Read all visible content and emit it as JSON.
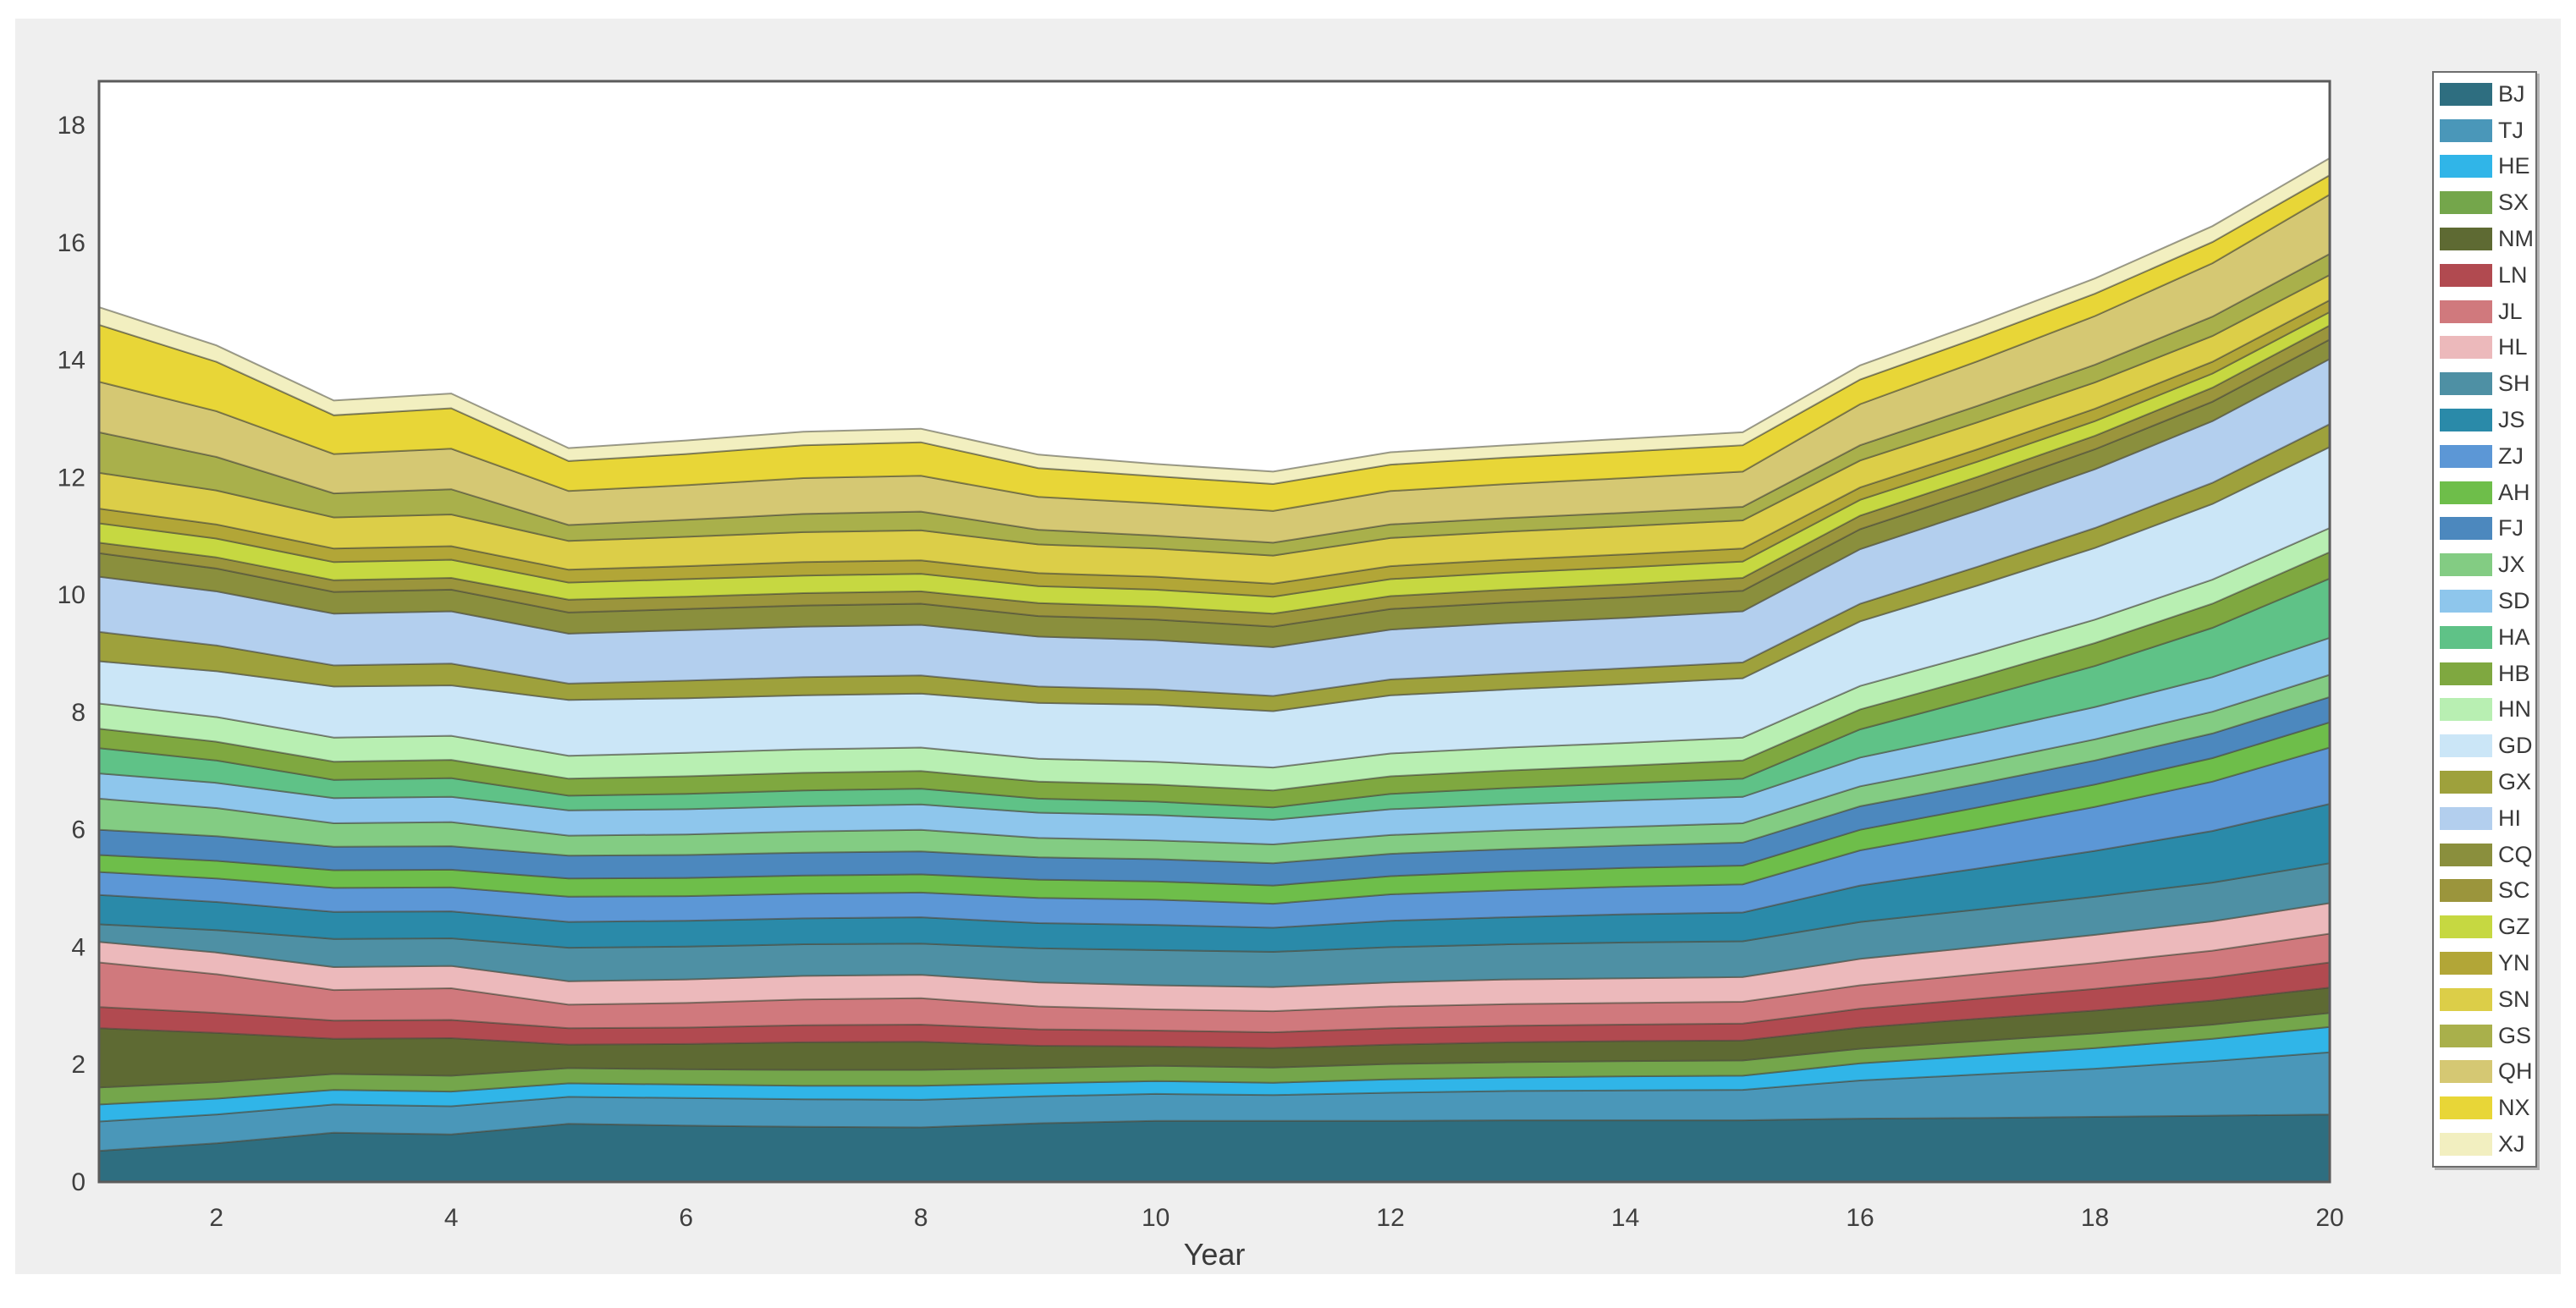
{
  "figure": {
    "background_color": "#efefef",
    "plot_background_color": "#ffffff",
    "axis_box_color": "#5b5b5b",
    "band_edge_color": "rgba(75,75,60,0.55)",
    "tick_label_color": "#3f3f3f"
  },
  "axes": {
    "xlabel": "Year",
    "x_tick_labels": [
      2,
      4,
      6,
      8,
      10,
      12,
      14,
      16,
      18,
      20
    ],
    "y_tick_labels": [
      0,
      2,
      4,
      6,
      8,
      10,
      12,
      14,
      16,
      18
    ],
    "x_range": [
      1,
      20
    ],
    "y_range": [
      0,
      18.75
    ],
    "grid": "off",
    "legend_position": "right-outside"
  },
  "chart_data": {
    "type": "area",
    "stacked": true,
    "title": "",
    "xlabel": "Year",
    "ylabel": "",
    "xlim": [
      1,
      20
    ],
    "ylim": [
      0,
      18.75
    ],
    "x": [
      1,
      2,
      3,
      4,
      5,
      6,
      7,
      8,
      9,
      10,
      11,
      12,
      13,
      14,
      15,
      16,
      17,
      18,
      19,
      20
    ],
    "series": [
      {
        "name": "BJ",
        "color": "#2E6E80",
        "values": [
          0.53,
          0.66,
          0.84,
          0.81,
          0.99,
          0.96,
          0.94,
          0.93,
          1.0,
          1.04,
          1.04,
          1.04,
          1.05,
          1.05,
          1.05,
          1.08,
          1.09,
          1.11,
          1.13,
          1.15
        ]
      },
      {
        "name": "TJ",
        "color": "#4A97B9",
        "values": [
          0.5,
          0.49,
          0.48,
          0.48,
          0.46,
          0.47,
          0.47,
          0.47,
          0.46,
          0.46,
          0.44,
          0.48,
          0.5,
          0.51,
          0.52,
          0.65,
          0.74,
          0.82,
          0.93,
          1.06
        ]
      },
      {
        "name": "HE",
        "color": "#30B5E8",
        "values": [
          0.29,
          0.27,
          0.25,
          0.25,
          0.23,
          0.23,
          0.23,
          0.24,
          0.22,
          0.22,
          0.21,
          0.23,
          0.23,
          0.24,
          0.24,
          0.29,
          0.32,
          0.35,
          0.38,
          0.43
        ]
      },
      {
        "name": "SX",
        "color": "#74A64B",
        "values": [
          0.29,
          0.28,
          0.27,
          0.27,
          0.26,
          0.26,
          0.27,
          0.27,
          0.26,
          0.26,
          0.26,
          0.26,
          0.26,
          0.26,
          0.26,
          0.25,
          0.25,
          0.25,
          0.24,
          0.24
        ]
      },
      {
        "name": "NM",
        "color": "#5E6A33",
        "values": [
          1.01,
          0.84,
          0.6,
          0.64,
          0.4,
          0.43,
          0.47,
          0.48,
          0.38,
          0.33,
          0.33,
          0.33,
          0.34,
          0.34,
          0.34,
          0.36,
          0.38,
          0.39,
          0.41,
          0.43
        ]
      },
      {
        "name": "LN",
        "color": "#B14A50",
        "values": [
          0.36,
          0.34,
          0.31,
          0.31,
          0.28,
          0.28,
          0.29,
          0.29,
          0.28,
          0.27,
          0.27,
          0.28,
          0.28,
          0.28,
          0.29,
          0.32,
          0.34,
          0.37,
          0.39,
          0.43
        ]
      },
      {
        "name": "JL",
        "color": "#D0797D",
        "values": [
          0.76,
          0.66,
          0.52,
          0.54,
          0.4,
          0.42,
          0.44,
          0.45,
          0.39,
          0.36,
          0.36,
          0.37,
          0.37,
          0.37,
          0.37,
          0.4,
          0.42,
          0.44,
          0.46,
          0.49
        ]
      },
      {
        "name": "HL",
        "color": "#ECB9BB",
        "values": [
          0.35,
          0.37,
          0.39,
          0.38,
          0.4,
          0.4,
          0.4,
          0.4,
          0.41,
          0.41,
          0.41,
          0.41,
          0.42,
          0.42,
          0.42,
          0.45,
          0.46,
          0.48,
          0.5,
          0.52
        ]
      },
      {
        "name": "SH",
        "color": "#4E90A4",
        "values": [
          0.3,
          0.38,
          0.48,
          0.47,
          0.57,
          0.56,
          0.54,
          0.53,
          0.58,
          0.6,
          0.6,
          0.6,
          0.6,
          0.61,
          0.61,
          0.63,
          0.64,
          0.65,
          0.66,
          0.68
        ]
      },
      {
        "name": "JS",
        "color": "#2A8AA9",
        "values": [
          0.5,
          0.48,
          0.46,
          0.46,
          0.44,
          0.44,
          0.44,
          0.45,
          0.43,
          0.43,
          0.41,
          0.45,
          0.46,
          0.48,
          0.49,
          0.62,
          0.7,
          0.78,
          0.88,
          1.01
        ]
      },
      {
        "name": "ZJ",
        "color": "#5C97D6",
        "values": [
          0.39,
          0.4,
          0.41,
          0.41,
          0.43,
          0.42,
          0.42,
          0.42,
          0.43,
          0.43,
          0.41,
          0.45,
          0.46,
          0.47,
          0.48,
          0.6,
          0.67,
          0.75,
          0.84,
          0.96
        ]
      },
      {
        "name": "AH",
        "color": "#6EBE4A",
        "values": [
          0.29,
          0.3,
          0.3,
          0.3,
          0.31,
          0.31,
          0.31,
          0.31,
          0.31,
          0.31,
          0.31,
          0.31,
          0.32,
          0.32,
          0.32,
          0.35,
          0.37,
          0.38,
          0.4,
          0.43
        ]
      },
      {
        "name": "FJ",
        "color": "#4C88BE",
        "values": [
          0.43,
          0.42,
          0.4,
          0.4,
          0.39,
          0.39,
          0.39,
          0.39,
          0.38,
          0.38,
          0.38,
          0.38,
          0.38,
          0.38,
          0.39,
          0.4,
          0.4,
          0.41,
          0.42,
          0.43
        ]
      },
      {
        "name": "JX",
        "color": "#83CC83",
        "values": [
          0.53,
          0.48,
          0.4,
          0.41,
          0.34,
          0.35,
          0.36,
          0.37,
          0.33,
          0.32,
          0.32,
          0.32,
          0.32,
          0.32,
          0.33,
          0.34,
          0.35,
          0.36,
          0.37,
          0.38
        ]
      },
      {
        "name": "SD",
        "color": "#8EC6EC",
        "values": [
          0.43,
          0.43,
          0.43,
          0.43,
          0.43,
          0.43,
          0.43,
          0.43,
          0.43,
          0.43,
          0.42,
          0.44,
          0.44,
          0.45,
          0.45,
          0.49,
          0.52,
          0.55,
          0.59,
          0.63
        ]
      },
      {
        "name": "HA",
        "color": "#5FC287",
        "values": [
          0.43,
          0.38,
          0.31,
          0.32,
          0.25,
          0.26,
          0.27,
          0.27,
          0.24,
          0.23,
          0.21,
          0.26,
          0.28,
          0.29,
          0.31,
          0.48,
          0.59,
          0.7,
          0.84,
          1.01
        ]
      },
      {
        "name": "HB",
        "color": "#7FA840",
        "values": [
          0.33,
          0.32,
          0.31,
          0.31,
          0.29,
          0.3,
          0.3,
          0.3,
          0.29,
          0.29,
          0.29,
          0.3,
          0.3,
          0.3,
          0.31,
          0.34,
          0.36,
          0.39,
          0.41,
          0.45
        ]
      },
      {
        "name": "HN",
        "color": "#B8EFB2",
        "values": [
          0.43,
          0.42,
          0.41,
          0.41,
          0.39,
          0.4,
          0.4,
          0.4,
          0.39,
          0.39,
          0.39,
          0.39,
          0.39,
          0.39,
          0.39,
          0.4,
          0.4,
          0.4,
          0.41,
          0.41
        ]
      },
      {
        "name": "GD",
        "color": "#CBE6F7",
        "values": [
          0.72,
          0.78,
          0.87,
          0.86,
          0.95,
          0.93,
          0.92,
          0.92,
          0.95,
          0.97,
          0.96,
          0.99,
          0.99,
          1.0,
          1.01,
          1.1,
          1.16,
          1.22,
          1.29,
          1.38
        ]
      },
      {
        "name": "GX",
        "color": "#9EA13C",
        "values": [
          0.5,
          0.44,
          0.36,
          0.37,
          0.28,
          0.3,
          0.31,
          0.31,
          0.28,
          0.26,
          0.26,
          0.27,
          0.27,
          0.27,
          0.27,
          0.3,
          0.32,
          0.34,
          0.36,
          0.39
        ]
      },
      {
        "name": "HI",
        "color": "#B3CFEE",
        "values": [
          0.94,
          0.92,
          0.88,
          0.89,
          0.85,
          0.86,
          0.86,
          0.86,
          0.85,
          0.84,
          0.83,
          0.85,
          0.86,
          0.86,
          0.87,
          0.93,
          0.96,
          1.0,
          1.05,
          1.11
        ]
      },
      {
        "name": "CQ",
        "color": "#8A8F3D",
        "values": [
          0.4,
          0.39,
          0.37,
          0.37,
          0.36,
          0.36,
          0.36,
          0.36,
          0.35,
          0.35,
          0.35,
          0.35,
          0.35,
          0.35,
          0.35,
          0.34,
          0.34,
          0.34,
          0.33,
          0.33
        ]
      },
      {
        "name": "SC",
        "color": "#9B953C",
        "values": [
          0.18,
          0.19,
          0.2,
          0.2,
          0.22,
          0.21,
          0.21,
          0.21,
          0.22,
          0.22,
          0.22,
          0.22,
          0.22,
          0.22,
          0.22,
          0.23,
          0.23,
          0.23,
          0.24,
          0.24
        ]
      },
      {
        "name": "GZ",
        "color": "#C6D841",
        "values": [
          0.33,
          0.32,
          0.31,
          0.31,
          0.29,
          0.3,
          0.3,
          0.3,
          0.29,
          0.29,
          0.29,
          0.29,
          0.29,
          0.29,
          0.28,
          0.27,
          0.26,
          0.25,
          0.24,
          0.23
        ]
      },
      {
        "name": "YN",
        "color": "#B2A637",
        "values": [
          0.25,
          0.24,
          0.23,
          0.23,
          0.22,
          0.22,
          0.23,
          0.23,
          0.22,
          0.22,
          0.22,
          0.22,
          0.22,
          0.22,
          0.22,
          0.21,
          0.21,
          0.21,
          0.2,
          0.2
        ]
      },
      {
        "name": "SN",
        "color": "#DCCE48",
        "values": [
          0.61,
          0.58,
          0.53,
          0.54,
          0.49,
          0.5,
          0.51,
          0.51,
          0.49,
          0.48,
          0.48,
          0.48,
          0.48,
          0.48,
          0.48,
          0.46,
          0.46,
          0.45,
          0.44,
          0.43
        ]
      },
      {
        "name": "GS",
        "color": "#A9B04B",
        "values": [
          0.69,
          0.57,
          0.41,
          0.43,
          0.27,
          0.29,
          0.31,
          0.32,
          0.25,
          0.22,
          0.22,
          0.23,
          0.23,
          0.23,
          0.23,
          0.26,
          0.28,
          0.3,
          0.33,
          0.36
        ]
      },
      {
        "name": "QH",
        "color": "#D5C873",
        "values": [
          0.86,
          0.78,
          0.67,
          0.69,
          0.58,
          0.59,
          0.61,
          0.61,
          0.56,
          0.55,
          0.54,
          0.57,
          0.58,
          0.59,
          0.6,
          0.7,
          0.76,
          0.83,
          0.91,
          1.01
        ]
      },
      {
        "name": "NX",
        "color": "#E8D637",
        "values": [
          0.97,
          0.84,
          0.66,
          0.69,
          0.51,
          0.53,
          0.56,
          0.57,
          0.49,
          0.46,
          0.46,
          0.45,
          0.45,
          0.45,
          0.45,
          0.42,
          0.4,
          0.38,
          0.36,
          0.33
        ]
      },
      {
        "name": "XJ",
        "color": "#F2EFC0",
        "values": [
          0.3,
          0.28,
          0.25,
          0.25,
          0.22,
          0.23,
          0.23,
          0.23,
          0.23,
          0.21,
          0.21,
          0.21,
          0.21,
          0.22,
          0.22,
          0.24,
          0.25,
          0.26,
          0.27,
          0.29
        ]
      }
    ]
  }
}
